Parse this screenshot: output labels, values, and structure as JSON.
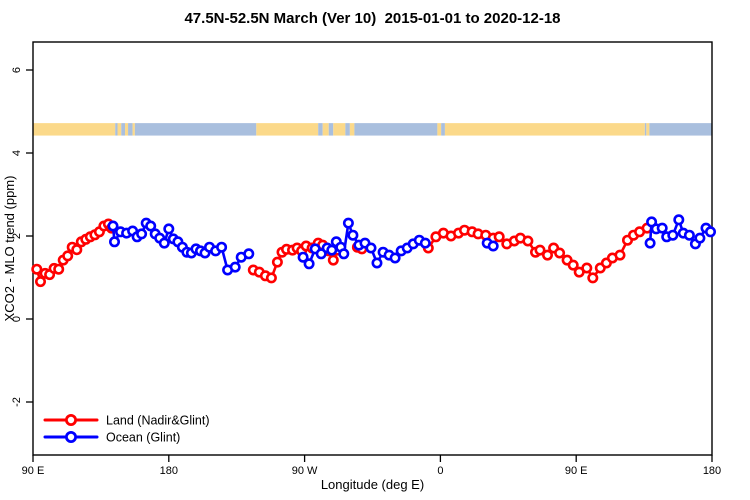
{
  "title": "47.5N-52.5N March (Ver 10)  2015-01-01 to 2020-12-18",
  "chart_data": {
    "type": "line",
    "title": "47.5N-52.5N March (Ver 10)  2015-01-01 to 2020-12-18",
    "xlabel": "Longitude (deg E)",
    "ylabel": "XCO2 - MLO trend (ppm)",
    "x_axis": {
      "range_deg": [
        90,
        540
      ],
      "ticks": [
        {
          "deg": 90,
          "label": "90 E"
        },
        {
          "deg": 180,
          "label": "180"
        },
        {
          "deg": 270,
          "label": "90 W"
        },
        {
          "deg": 360,
          "label": "0"
        },
        {
          "deg": 450,
          "label": "90 E"
        },
        {
          "deg": 540,
          "label": "180"
        }
      ]
    },
    "y_axis": {
      "range": [
        -3.3,
        6.7
      ],
      "ticks": [
        {
          "value": -2,
          "label": "-2"
        },
        {
          "value": 0,
          "label": "0"
        },
        {
          "value": 2,
          "label": "2"
        },
        {
          "value": 4,
          "label": "4"
        },
        {
          "value": 6,
          "label": "6"
        }
      ]
    },
    "surface_band": {
      "y_range": [
        4.42,
        4.72
      ],
      "land_color": "#FBD98A",
      "ocean_color": "#A9BFDE",
      "segments": [
        {
          "from": 90,
          "to": 144.5,
          "type": "land"
        },
        {
          "from": 144.5,
          "to": 146,
          "type": "ocean"
        },
        {
          "from": 146,
          "to": 148.5,
          "type": "land"
        },
        {
          "from": 148.5,
          "to": 151,
          "type": "ocean"
        },
        {
          "from": 151,
          "to": 153,
          "type": "land"
        },
        {
          "from": 153,
          "to": 156,
          "type": "ocean"
        },
        {
          "from": 156,
          "to": 157.5,
          "type": "land"
        },
        {
          "from": 157.5,
          "to": 238,
          "type": "ocean"
        },
        {
          "from": 238,
          "to": 279,
          "type": "land"
        },
        {
          "from": 279,
          "to": 282,
          "type": "ocean"
        },
        {
          "from": 282,
          "to": 286,
          "type": "land"
        },
        {
          "from": 286,
          "to": 289,
          "type": "ocean"
        },
        {
          "from": 289,
          "to": 297,
          "type": "land"
        },
        {
          "from": 297,
          "to": 300,
          "type": "ocean"
        },
        {
          "from": 300,
          "to": 303,
          "type": "land"
        },
        {
          "from": 303,
          "to": 358,
          "type": "ocean"
        },
        {
          "from": 358,
          "to": 360.5,
          "type": "land"
        },
        {
          "from": 360.5,
          "to": 363,
          "type": "ocean"
        },
        {
          "from": 363,
          "to": 495.5,
          "type": "land"
        },
        {
          "from": 495.5,
          "to": 496.5,
          "type": "ocean"
        },
        {
          "from": 496.5,
          "to": 498.5,
          "type": "land"
        },
        {
          "from": 498.5,
          "to": 540,
          "type": "ocean"
        }
      ]
    },
    "series": [
      {
        "name": "Land (Nadir&Glint)",
        "color": "#FF0000",
        "segments": [
          [
            [
              92.5,
              1.2
            ],
            [
              95,
              0.9
            ],
            [
              98,
              1.1
            ],
            [
              101,
              1.07
            ],
            [
              104,
              1.22
            ],
            [
              107,
              1.2
            ],
            [
              110,
              1.42
            ],
            [
              113,
              1.52
            ],
            [
              116,
              1.73
            ],
            [
              119,
              1.67
            ],
            [
              122,
              1.86
            ],
            [
              125,
              1.92
            ],
            [
              128,
              1.98
            ],
            [
              131,
              2.03
            ],
            [
              134,
              2.1
            ],
            [
              137,
              2.24
            ],
            [
              140,
              2.29
            ],
            [
              142,
              2.19
            ]
          ],
          [
            [
              236,
              1.18
            ],
            [
              240,
              1.13
            ],
            [
              244,
              1.04
            ],
            [
              248,
              0.99
            ],
            [
              252,
              1.37
            ],
            [
              255,
              1.61
            ],
            [
              258,
              1.68
            ],
            [
              262,
              1.66
            ],
            [
              265,
              1.71
            ],
            [
              268,
              1.64
            ],
            [
              271,
              1.76
            ],
            [
              275,
              1.71
            ],
            [
              279,
              1.83
            ],
            [
              282,
              1.78
            ],
            [
              286,
              1.64
            ],
            [
              289,
              1.42
            ],
            [
              292,
              1.66
            ]
          ],
          [
            [
              305,
              1.73
            ],
            [
              308,
              1.69
            ]
          ],
          [
            [
              352,
              1.71
            ],
            [
              357,
              1.98
            ],
            [
              362,
              2.07
            ],
            [
              367,
              2.0
            ],
            [
              372,
              2.07
            ],
            [
              376,
              2.14
            ],
            [
              381,
              2.1
            ],
            [
              385,
              2.05
            ],
            [
              390,
              2.02
            ],
            [
              395,
              1.95
            ],
            [
              399,
              1.98
            ],
            [
              404,
              1.81
            ],
            [
              409,
              1.88
            ],
            [
              413,
              1.95
            ],
            [
              418,
              1.88
            ],
            [
              423,
              1.61
            ],
            [
              426,
              1.66
            ],
            [
              431,
              1.54
            ],
            [
              435,
              1.71
            ],
            [
              439,
              1.59
            ],
            [
              444,
              1.42
            ],
            [
              448,
              1.3
            ],
            [
              452,
              1.13
            ],
            [
              457,
              1.23
            ],
            [
              461,
              0.99
            ],
            [
              466,
              1.23
            ],
            [
              470,
              1.35
            ],
            [
              474,
              1.47
            ],
            [
              479,
              1.54
            ],
            [
              484,
              1.9
            ],
            [
              488,
              2.02
            ],
            [
              492,
              2.1
            ],
            [
              497,
              2.19
            ]
          ]
        ]
      },
      {
        "name": "Ocean (Glint)",
        "color": "#0000FF",
        "segments": [
          [
            [
              143,
              2.24
            ],
            [
              144,
              1.86
            ],
            [
              148,
              2.1
            ],
            [
              152,
              2.07
            ],
            [
              156,
              2.12
            ],
            [
              159,
              1.98
            ],
            [
              162,
              2.05
            ],
            [
              165,
              2.31
            ],
            [
              168,
              2.24
            ],
            [
              171,
              2.05
            ],
            [
              174,
              1.95
            ],
            [
              177,
              1.83
            ],
            [
              180,
              2.17
            ],
            [
              183,
              1.93
            ],
            [
              186,
              1.86
            ],
            [
              189,
              1.73
            ],
            [
              192,
              1.61
            ],
            [
              195,
              1.59
            ],
            [
              198,
              1.69
            ],
            [
              201,
              1.64
            ],
            [
              204,
              1.59
            ],
            [
              207,
              1.73
            ],
            [
              211,
              1.64
            ],
            [
              215,
              1.73
            ],
            [
              219,
              1.18
            ],
            [
              224,
              1.25
            ],
            [
              228,
              1.49
            ],
            [
              233,
              1.57
            ]
          ],
          [
            [
              269,
              1.49
            ],
            [
              273,
              1.33
            ],
            [
              277,
              1.69
            ],
            [
              281,
              1.57
            ],
            [
              285,
              1.71
            ],
            [
              288,
              1.66
            ],
            [
              291,
              1.86
            ],
            [
              294,
              1.73
            ],
            [
              296,
              1.57
            ],
            [
              299,
              2.31
            ],
            [
              302,
              2.02
            ],
            [
              306,
              1.78
            ],
            [
              310,
              1.83
            ],
            [
              314,
              1.71
            ],
            [
              318,
              1.35
            ],
            [
              322,
              1.61
            ],
            [
              326,
              1.54
            ],
            [
              330,
              1.47
            ],
            [
              334,
              1.64
            ],
            [
              338,
              1.71
            ],
            [
              342,
              1.81
            ],
            [
              346,
              1.9
            ],
            [
              350,
              1.83
            ]
          ],
          [
            [
              391,
              1.83
            ],
            [
              395,
              1.76
            ]
          ],
          [
            [
              499,
              1.83
            ],
            [
              500,
              2.34
            ],
            [
              503,
              2.17
            ],
            [
              507,
              2.19
            ],
            [
              510,
              1.98
            ],
            [
              514,
              2.02
            ],
            [
              518,
              2.39
            ],
            [
              521,
              2.07
            ],
            [
              525,
              2.02
            ],
            [
              529,
              1.81
            ],
            [
              532,
              1.95
            ],
            [
              536,
              2.19
            ],
            [
              539,
              2.1
            ]
          ]
        ]
      }
    ],
    "legend": {
      "position": "bottom-left",
      "items": [
        {
          "label": "Land (Nadir&Glint)",
          "color": "#FF0000"
        },
        {
          "label": "Ocean (Glint)",
          "color": "#0000FF"
        }
      ]
    }
  }
}
